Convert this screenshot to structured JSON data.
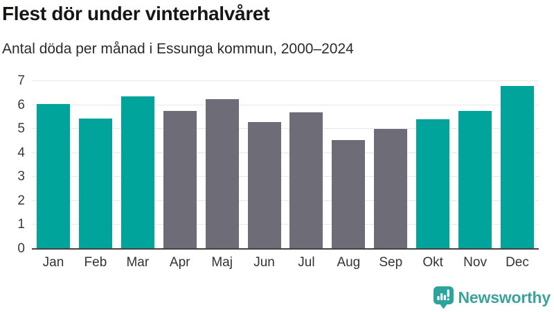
{
  "title": "Flest dör under vinterhalvåret",
  "subtitle": "Antal döda per månad i Essunga kommun, 2000–2024",
  "chart_data": {
    "type": "bar",
    "categories": [
      "Jan",
      "Feb",
      "Mar",
      "Apr",
      "Maj",
      "Jun",
      "Jul",
      "Aug",
      "Sep",
      "Okt",
      "Nov",
      "Dec"
    ],
    "values": [
      6.05,
      5.45,
      6.35,
      5.75,
      6.25,
      5.3,
      5.7,
      4.55,
      5.0,
      5.4,
      5.75,
      6.8
    ],
    "bar_color_keys": [
      "teal",
      "teal",
      "teal",
      "gray",
      "gray",
      "gray",
      "gray",
      "gray",
      "gray",
      "teal",
      "teal",
      "teal"
    ],
    "title": "Flest dör under vinterhalvåret",
    "subtitle": "Antal döda per månad i Essunga kommun, 2000–2024",
    "xlabel": "",
    "ylabel": "",
    "ylim": [
      0,
      7
    ],
    "yticks": [
      0,
      1,
      2,
      3,
      4,
      5,
      6,
      7
    ],
    "grid": true,
    "legend": false,
    "colors": {
      "teal": "#00a49a",
      "gray": "#6e6d77"
    }
  },
  "colors": {
    "accent_teal": "#00a49a",
    "neutral_gray": "#6e6d77",
    "gridline": "#e7e7e7",
    "axis": "#424242",
    "brand_teal": "#3aa39b",
    "logo_teal": "#2aa49c"
  },
  "footer": {
    "brand": "Newsworthy",
    "logo_icon": "newsworthy-speech-bubble-bar-chart-icon"
  }
}
